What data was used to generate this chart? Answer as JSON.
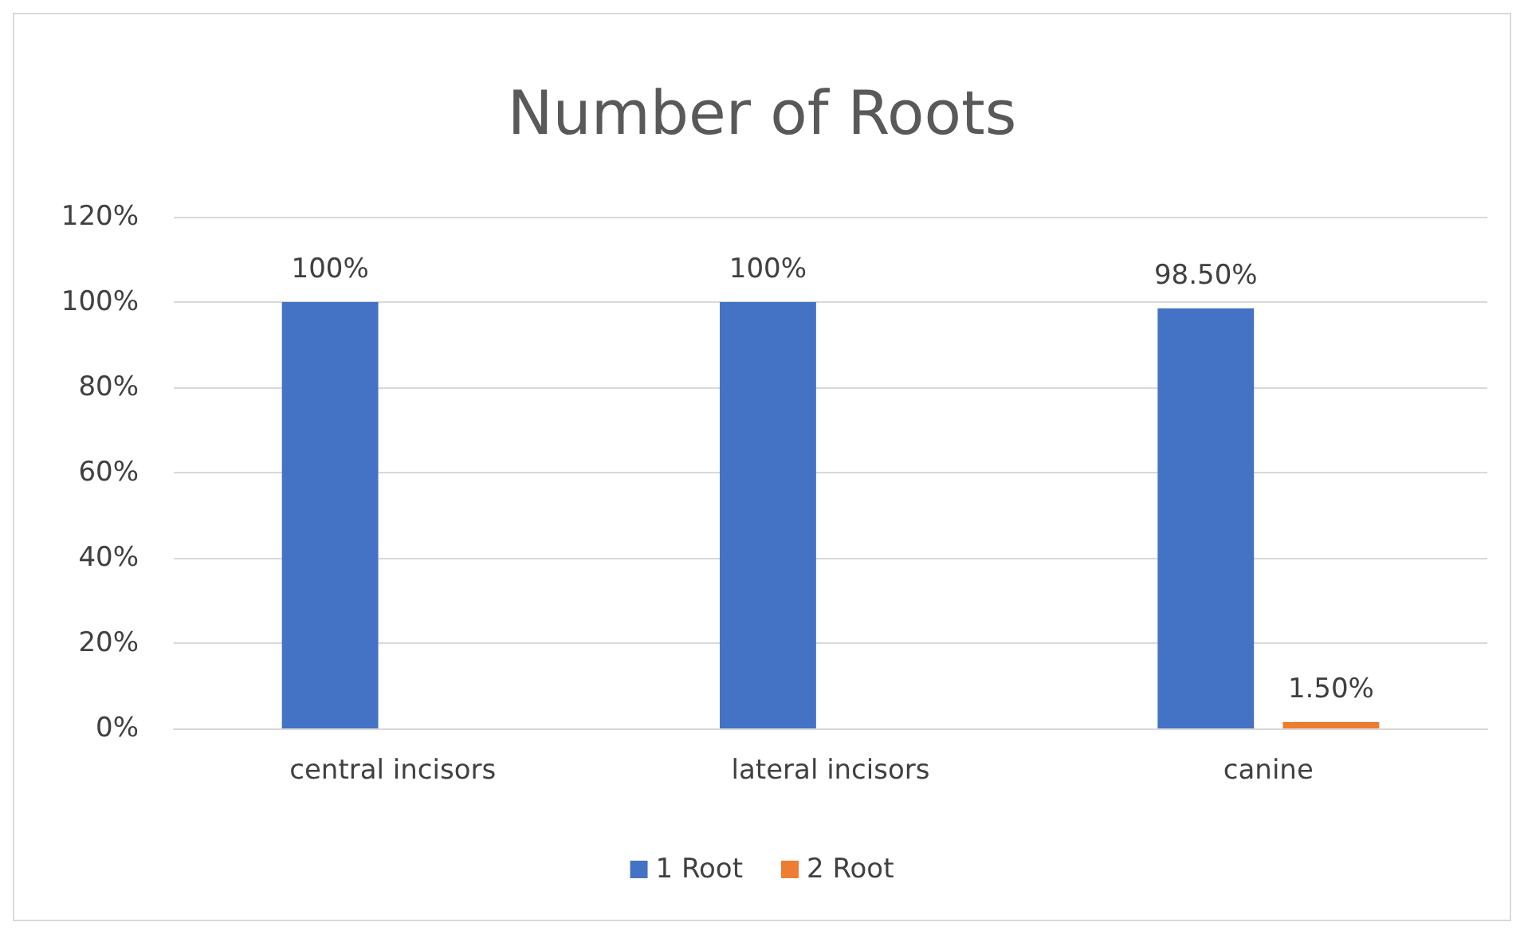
{
  "chart_data": {
    "type": "bar",
    "title": "Number of Roots",
    "categories": [
      "central incisors",
      "lateral incisors",
      "canine"
    ],
    "series": [
      {
        "name": "1 Root",
        "color": "#4472c4",
        "values": [
          100,
          100,
          98.5
        ],
        "value_labels": [
          "100%",
          "100%",
          "98.50%"
        ]
      },
      {
        "name": "2 Root",
        "color": "#ed7d31",
        "values": [
          null,
          null,
          1.5
        ],
        "value_labels": [
          null,
          null,
          "1.50%"
        ]
      }
    ],
    "ylim": [
      0,
      120
    ],
    "yticks": [
      {
        "value": 0,
        "label": "0%"
      },
      {
        "value": 20,
        "label": "20%"
      },
      {
        "value": 40,
        "label": "40%"
      },
      {
        "value": 60,
        "label": "60%"
      },
      {
        "value": 80,
        "label": "80%"
      },
      {
        "value": 100,
        "label": "100%"
      },
      {
        "value": 120,
        "label": "120%"
      }
    ],
    "grid": "y",
    "legend": "bottom"
  }
}
